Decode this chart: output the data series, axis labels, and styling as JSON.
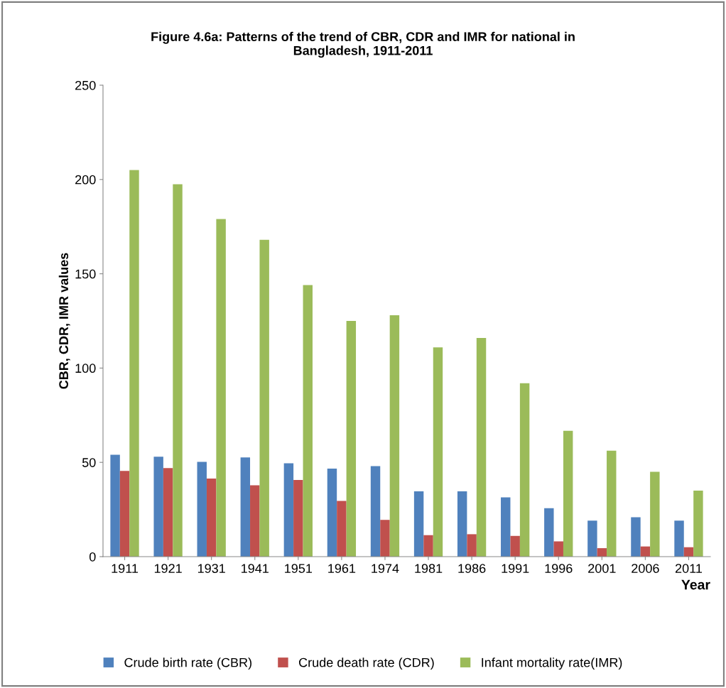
{
  "chart_data": {
    "type": "bar",
    "title": "Figure 4.6a: Patterns of the trend of CBR, CDR and IMR for national in\nBangladesh, 1911-2011",
    "xlabel": "Year",
    "ylabel": "CBR, CDR, IMR values",
    "categories": [
      "1911",
      "1921",
      "1931",
      "1941",
      "1951",
      "1961",
      "1974",
      "1981",
      "1986",
      "1991",
      "1996",
      "2001",
      "2006",
      "2011"
    ],
    "series": [
      {
        "name": "Crude birth rate (CBR)",
        "color": "#4f81bd",
        "values": [
          54,
          53,
          50.3,
          52.6,
          49.5,
          46.7,
          48,
          34.6,
          34.6,
          31.4,
          25.7,
          19.1,
          20.9,
          19.1
        ]
      },
      {
        "name": "Crude death rate (CDR)",
        "color": "#c0504d",
        "values": [
          45.5,
          47,
          41.4,
          37.8,
          40.7,
          29.6,
          19.5,
          11.4,
          11.9,
          11,
          8.1,
          4.5,
          5.4,
          5
        ]
      },
      {
        "name": "Infant mortality rate(IMR)",
        "color": "#9bbb59",
        "values": [
          205,
          197.5,
          179,
          168,
          144,
          125,
          128,
          111,
          116,
          92,
          66.7,
          56.2,
          45,
          35
        ]
      }
    ],
    "ylim": [
      0,
      250
    ],
    "yticks": [
      0,
      50,
      100,
      150,
      200,
      250
    ],
    "grid": false,
    "legend": "bottom"
  }
}
